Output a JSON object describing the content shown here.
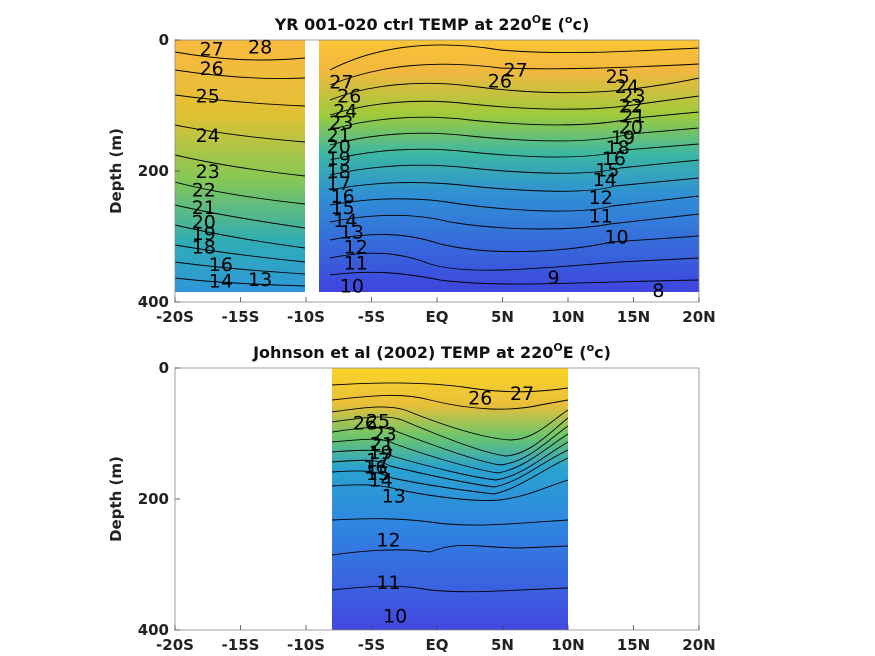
{
  "chart_data": [
    {
      "type": "contour",
      "title_main": "YR 001-020 ctrl TEMP at 220",
      "title_sup": "O",
      "title_unit_open": "E (",
      "title_unit_sup": "o",
      "title_unit_close": "c)",
      "ylabel": "Depth (m)",
      "xlim": [
        -20,
        20
      ],
      "ylim": [
        0,
        400
      ],
      "x_ticks": [
        -20,
        -15,
        -10,
        -5,
        0,
        5,
        10,
        15,
        20
      ],
      "x_tick_labels": [
        "-20S",
        "-15S",
        "-10S",
        "-5S",
        "EQ",
        "5N",
        "10N",
        "15N",
        "20N"
      ],
      "y_ticks": [
        0,
        200,
        400
      ],
      "y_tick_labels": [
        "0",
        "200",
        "400"
      ],
      "data_extent": {
        "x": [
          -20,
          20
        ],
        "y": [
          0,
          385
        ]
      },
      "gaps": [
        [
          -10.5,
          -9.5
        ]
      ],
      "contour_labels": [
        {
          "text": "28",
          "x": -13.5,
          "y": 10
        },
        {
          "text": "27",
          "x": -17.2,
          "y": 13
        },
        {
          "text": "26",
          "x": -17.2,
          "y": 43
        },
        {
          "text": "25",
          "x": -17.5,
          "y": 85
        },
        {
          "text": "24",
          "x": -17.5,
          "y": 145
        },
        {
          "text": "23",
          "x": -17.5,
          "y": 200
        },
        {
          "text": "22",
          "x": -17.8,
          "y": 228
        },
        {
          "text": "21",
          "x": -17.8,
          "y": 255
        },
        {
          "text": "20",
          "x": -17.8,
          "y": 277
        },
        {
          "text": "19",
          "x": -17.8,
          "y": 295
        },
        {
          "text": "18",
          "x": -17.8,
          "y": 315
        },
        {
          "text": "16",
          "x": -16.5,
          "y": 342
        },
        {
          "text": "14",
          "x": -16.5,
          "y": 367
        },
        {
          "text": "13",
          "x": -13.5,
          "y": 365
        },
        {
          "text": "27",
          "x": -7.3,
          "y": 63
        },
        {
          "text": "26",
          "x": -6.7,
          "y": 85
        },
        {
          "text": "24",
          "x": -7.0,
          "y": 108
        },
        {
          "text": "23",
          "x": -7.3,
          "y": 125
        },
        {
          "text": "21",
          "x": -7.5,
          "y": 145
        },
        {
          "text": "20",
          "x": -7.5,
          "y": 162
        },
        {
          "text": "19",
          "x": -7.5,
          "y": 180
        },
        {
          "text": "18",
          "x": -7.5,
          "y": 200
        },
        {
          "text": "17",
          "x": -7.5,
          "y": 218
        },
        {
          "text": "16",
          "x": -7.2,
          "y": 238
        },
        {
          "text": "15",
          "x": -7.2,
          "y": 255
        },
        {
          "text": "14",
          "x": -7.0,
          "y": 275
        },
        {
          "text": "13",
          "x": -6.5,
          "y": 292
        },
        {
          "text": "12",
          "x": -6.2,
          "y": 315
        },
        {
          "text": "11",
          "x": -6.2,
          "y": 340
        },
        {
          "text": "10",
          "x": -6.5,
          "y": 375
        },
        {
          "text": "27",
          "x": 6.0,
          "y": 45
        },
        {
          "text": "26",
          "x": 4.8,
          "y": 62
        },
        {
          "text": "25",
          "x": 13.8,
          "y": 55
        },
        {
          "text": "24",
          "x": 14.5,
          "y": 70
        },
        {
          "text": "23",
          "x": 15.0,
          "y": 85
        },
        {
          "text": "22",
          "x": 14.8,
          "y": 100
        },
        {
          "text": "21",
          "x": 15.0,
          "y": 115
        },
        {
          "text": "20",
          "x": 14.8,
          "y": 132
        },
        {
          "text": "19",
          "x": 14.2,
          "y": 148
        },
        {
          "text": "18",
          "x": 13.8,
          "y": 163
        },
        {
          "text": "16",
          "x": 13.5,
          "y": 180
        },
        {
          "text": "15",
          "x": 13.0,
          "y": 198
        },
        {
          "text": "14",
          "x": 12.8,
          "y": 212
        },
        {
          "text": "12",
          "x": 12.5,
          "y": 240
        },
        {
          "text": "11",
          "x": 12.5,
          "y": 268
        },
        {
          "text": "10",
          "x": 13.7,
          "y": 300
        },
        {
          "text": "9",
          "x": 8.9,
          "y": 362
        },
        {
          "text": "8",
          "x": 16.9,
          "y": 382
        }
      ]
    },
    {
      "type": "contour",
      "title_main": "Johnson et al (2002) TEMP at 220",
      "title_sup": "O",
      "title_unit_open": "E (",
      "title_unit_sup": "o",
      "title_unit_close": "c)",
      "ylabel": "Depth (m)",
      "xlim": [
        -20,
        20
      ],
      "ylim": [
        0,
        400
      ],
      "x_ticks": [
        -20,
        -15,
        -10,
        -5,
        0,
        5,
        10,
        15,
        20
      ],
      "x_tick_labels": [
        "-20S",
        "-15S",
        "-10S",
        "-5S",
        "EQ",
        "5N",
        "10N",
        "15N",
        "20N"
      ],
      "y_ticks": [
        0,
        200,
        400
      ],
      "y_tick_labels": [
        "0",
        "200",
        "400"
      ],
      "data_extent": {
        "x": [
          -8,
          10
        ],
        "y": [
          0,
          400
        ]
      },
      "gaps": [],
      "contour_labels": [
        {
          "text": "26",
          "x": 3.3,
          "y": 45
        },
        {
          "text": "27",
          "x": 6.5,
          "y": 38
        },
        {
          "text": "26",
          "x": -5.5,
          "y": 83
        },
        {
          "text": "25",
          "x": -4.5,
          "y": 80
        },
        {
          "text": "23",
          "x": -4.0,
          "y": 100
        },
        {
          "text": "21",
          "x": -4.2,
          "y": 115
        },
        {
          "text": "19",
          "x": -4.3,
          "y": 128
        },
        {
          "text": "17",
          "x": -4.5,
          "y": 140
        },
        {
          "text": "16",
          "x": -4.7,
          "y": 150
        },
        {
          "text": "15",
          "x": -4.5,
          "y": 160
        },
        {
          "text": "14",
          "x": -4.3,
          "y": 170
        },
        {
          "text": "13",
          "x": -3.3,
          "y": 195
        },
        {
          "text": "12",
          "x": -3.7,
          "y": 262
        },
        {
          "text": "11",
          "x": -3.7,
          "y": 327
        },
        {
          "text": "10",
          "x": -3.2,
          "y": 378
        }
      ]
    }
  ]
}
